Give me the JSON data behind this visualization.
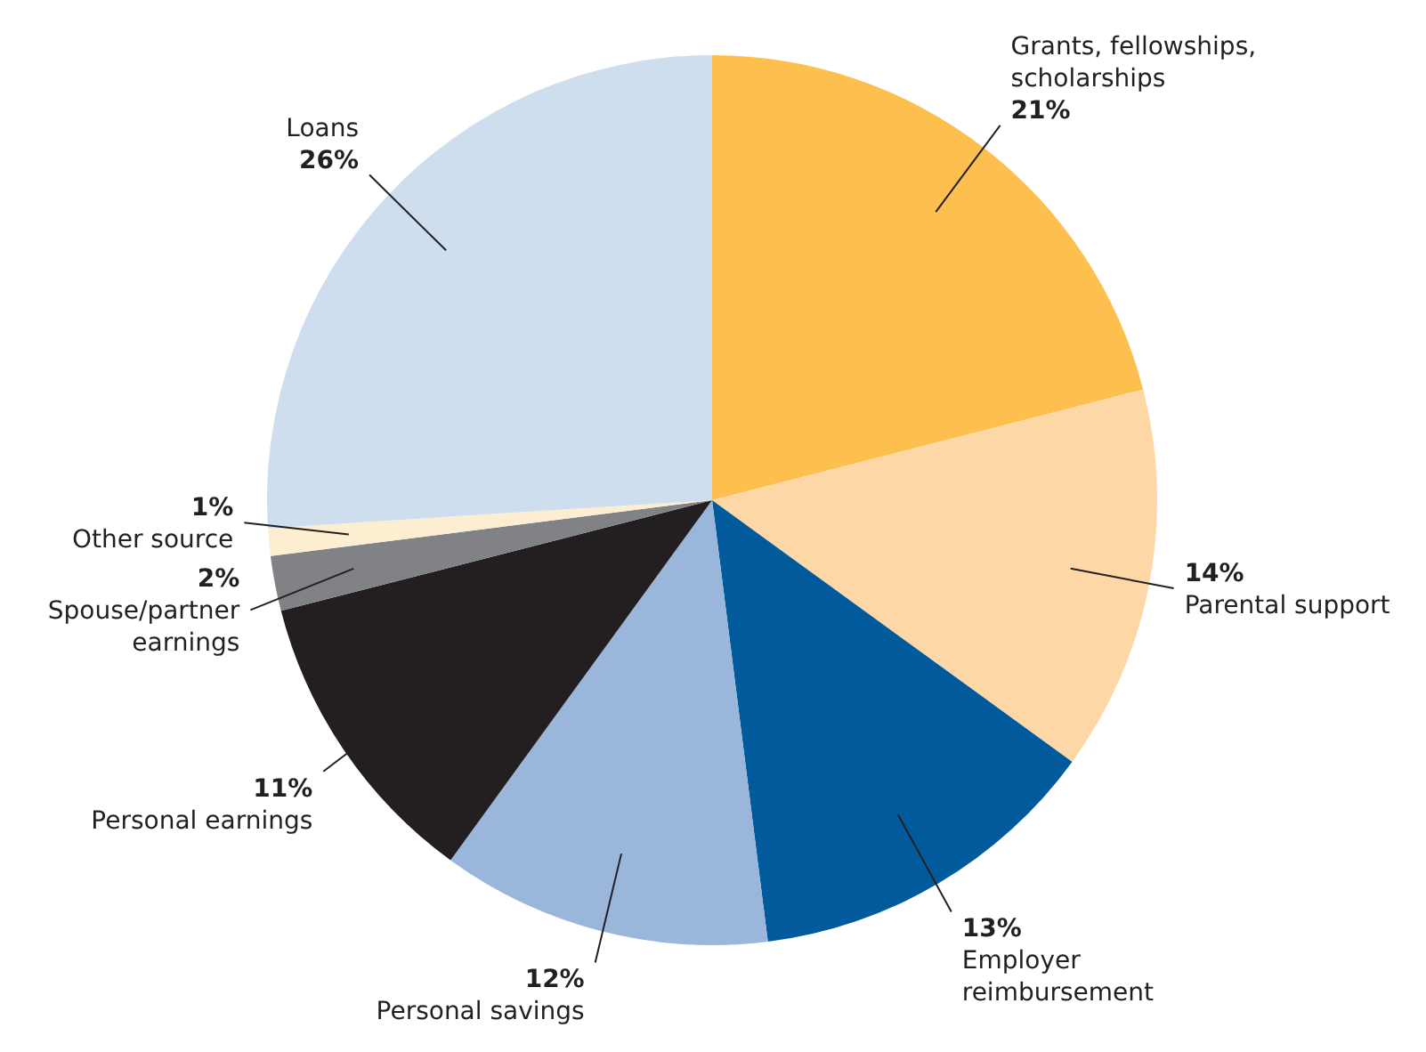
{
  "chart_data": {
    "type": "pie",
    "categories": [
      "Grants, fellowships, scholarships",
      "Parental support",
      "Employer reimbursement",
      "Personal savings",
      "Personal earnings",
      "Spouse/partner earnings",
      "Other source",
      "Loans"
    ],
    "values": [
      21,
      14,
      13,
      12,
      11,
      2,
      1,
      26
    ],
    "value_labels": [
      "21%",
      "14%",
      "13%",
      "12%",
      "11%",
      "2%",
      "1%",
      "26%"
    ],
    "colors": [
      "#fdc04e",
      "#fdd8a6",
      "#005a9c",
      "#9ab6da",
      "#231f20",
      "#808285",
      "#fdeed2",
      "#cfdeee"
    ]
  }
}
